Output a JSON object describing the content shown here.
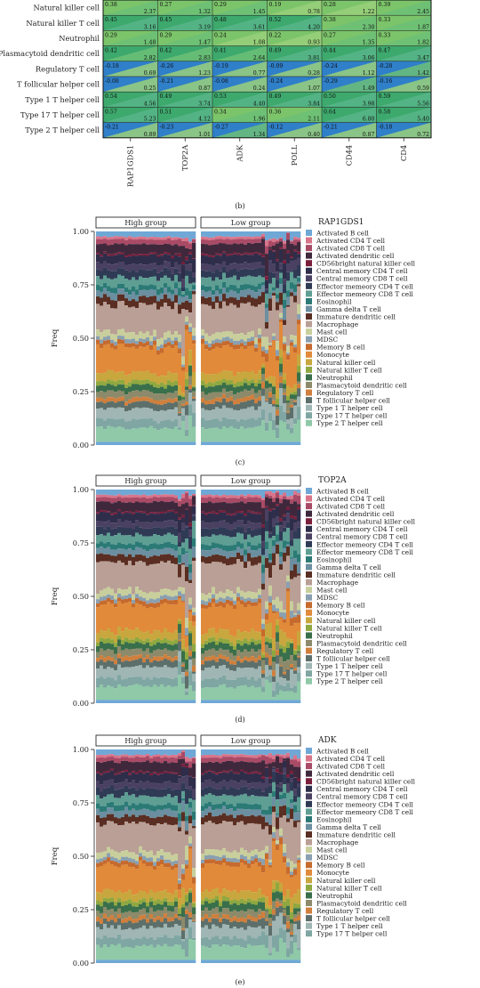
{
  "figure": {
    "panel_b_label": "(b)",
    "panel_c_label": "(c)",
    "panel_d_label": "(d)",
    "panel_e_label": "(e)"
  },
  "colors": {
    "heat_high": "#3da96d",
    "heat_mid": "#7cc46a",
    "heat_low": "#2f7fc9",
    "frame": "#111111"
  },
  "chart_data": [
    {
      "type": "heatmap",
      "panel": "b",
      "rows": [
        "Natural killer cell",
        "Natural killer T cell",
        "Neutrophil",
        "Plasmacytoid dendritic cell",
        "Regulatory T cell",
        "T follicular helper cell",
        "Type 1 T helper cell",
        "Type 17 T helper cell",
        "Type 2 T helper cell"
      ],
      "columns": [
        "RAP1GDS1",
        "TOP2A",
        "ADK",
        "POLL",
        "CD44",
        "CD4"
      ],
      "corr": [
        [
          0.38,
          0.27,
          0.29,
          0.19,
          0.28,
          0.39
        ],
        [
          0.45,
          0.45,
          0.48,
          0.52,
          0.38,
          0.33
        ],
        [
          0.29,
          0.29,
          0.24,
          0.22,
          0.27,
          0.33
        ],
        [
          0.42,
          0.42,
          0.41,
          0.49,
          0.44,
          0.47
        ],
        [
          -0.18,
          -0.26,
          -0.19,
          -0.09,
          -0.24,
          -0.28
        ],
        [
          -0.08,
          -0.21,
          -0.08,
          -0.24,
          -0.29,
          -0.16
        ],
        [
          0.54,
          0.49,
          0.53,
          0.49,
          0.5,
          0.59
        ],
        [
          0.57,
          0.51,
          0.34,
          0.36,
          0.64,
          0.58
        ],
        [
          -0.21,
          -0.23,
          -0.27,
          -0.12,
          -0.21,
          -0.18
        ]
      ],
      "logp": [
        [
          2.37,
          1.32,
          1.45,
          0.78,
          1.22,
          2.45
        ],
        [
          3.16,
          3.19,
          3.61,
          4.2,
          2.3,
          1.87
        ],
        [
          1.48,
          1.47,
          1.08,
          0.93,
          1.35,
          1.82
        ],
        [
          2.82,
          2.83,
          2.64,
          3.81,
          3.06,
          3.47
        ],
        [
          0.69,
          1.23,
          0.77,
          0.28,
          1.12,
          1.42
        ],
        [
          0.25,
          0.87,
          0.24,
          1.07,
          1.49,
          0.59
        ],
        [
          4.56,
          3.74,
          4.4,
          3.84,
          3.98,
          5.56
        ],
        [
          5.23,
          4.12,
          1.96,
          2.11,
          6.8,
          5.4
        ],
        [
          0.89,
          1.01,
          1.34,
          0.4,
          0.87,
          0.72
        ]
      ]
    },
    {
      "type": "bar",
      "stacked": true,
      "panel": "c",
      "gene": "RAP1GDS1",
      "group_labels": [
        "High group",
        "Low group"
      ],
      "ylabel": "Freq",
      "ylim": [
        0,
        1
      ],
      "yticks": [
        "0.00",
        "0.25",
        "0.50",
        "0.75",
        "1.00"
      ],
      "legend_position": "right"
    },
    {
      "type": "bar",
      "stacked": true,
      "panel": "d",
      "gene": "TOP2A",
      "group_labels": [
        "High group",
        "Low group"
      ],
      "ylabel": "Freq",
      "ylim": [
        0,
        1
      ],
      "yticks": [
        "0.00",
        "0.25",
        "0.50",
        "0.75",
        "1.00"
      ],
      "legend_position": "right"
    },
    {
      "type": "bar",
      "stacked": true,
      "panel": "e",
      "gene": "ADK",
      "group_labels": [
        "High group",
        "Low group"
      ],
      "ylabel": "Freq",
      "ylim": [
        0,
        1
      ],
      "yticks": [
        "0.00",
        "0.25",
        "0.50",
        "0.75",
        "1.00"
      ],
      "legend_position": "right"
    }
  ],
  "cell_types": [
    {
      "name": "Activated B cell",
      "color": "#6fa8d6",
      "share": 0.025
    },
    {
      "name": "Activated CD4 T cell",
      "color": "#d9748a",
      "share": 0.012
    },
    {
      "name": "Activated CD8 T cell",
      "color": "#a94a66",
      "share": 0.022
    },
    {
      "name": "Activated dendritic cell",
      "color": "#40283c",
      "share": 0.045
    },
    {
      "name": "CD56bright natural killer cell",
      "color": "#7a1d3a",
      "share": 0.008
    },
    {
      "name": "Central memory CD4 T cell",
      "color": "#2e2d4a",
      "share": 0.04
    },
    {
      "name": "Central memory CD8 T cell",
      "color": "#4a4162",
      "share": 0.03
    },
    {
      "name": "Effector memeory CD4 T cell",
      "color": "#2f3a55",
      "share": 0.035
    },
    {
      "name": "Effector memeory CD8 T cell",
      "color": "#5e9e93",
      "share": 0.04
    },
    {
      "name": "Eosinophil",
      "color": "#2b7a76",
      "share": 0.025
    },
    {
      "name": "Gamma delta T cell",
      "color": "#6b8fa0",
      "share": 0.03
    },
    {
      "name": "Immature dendritic cell",
      "color": "#5a2e22",
      "share": 0.035
    },
    {
      "name": "Macrophage",
      "color": "#b99f95",
      "share": 0.13
    },
    {
      "name": "Mast cell",
      "color": "#c9cf9c",
      "share": 0.03
    },
    {
      "name": "MDSC",
      "color": "#8aa0b0",
      "share": 0.018
    },
    {
      "name": "Memory B cell",
      "color": "#c66a2d",
      "share": 0.02
    },
    {
      "name": "Monocyte",
      "color": "#e08a3a",
      "share": 0.12
    },
    {
      "name": "Natural killer cell",
      "color": "#c7a73e",
      "share": 0.04
    },
    {
      "name": "Natural killer T cell",
      "color": "#8fa840",
      "share": 0.02
    },
    {
      "name": "Neutrophil",
      "color": "#396f4a",
      "share": 0.03
    },
    {
      "name": "Plasmacytoid dendritic cell",
      "color": "#8c8a6a",
      "share": 0.03
    },
    {
      "name": "Regulatory T cell",
      "color": "#d07f3c",
      "share": 0.02
    },
    {
      "name": "T follicular helper cell",
      "color": "#5d6f6a",
      "share": 0.03
    },
    {
      "name": "Type 1 T helper cell",
      "color": "#9fb6b4",
      "share": 0.05
    },
    {
      "name": "Type 17 T helper cell",
      "color": "#7fa6a2",
      "share": 0.04
    },
    {
      "name": "Type 2 T helper cell",
      "color": "#8fc9a8",
      "share": 0.065
    }
  ]
}
